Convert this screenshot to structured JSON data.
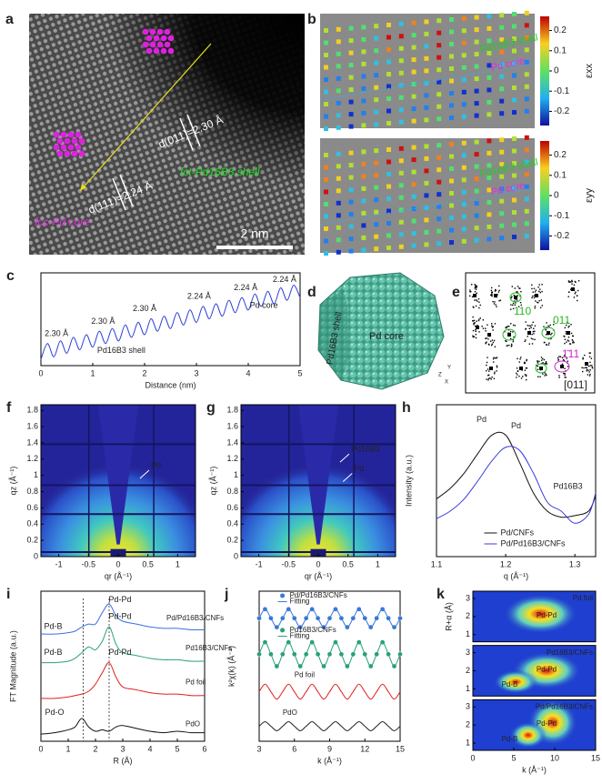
{
  "images": {
    "a": {
      "label": "a",
      "core": "fcc-Pd core",
      "shell": "fct-Pd16B3 shell",
      "scale_bar": "2 nm",
      "d111": "d(111)=2.24 Å",
      "d011": "d(011)=2.30 Å"
    },
    "b": {
      "label": "b",
      "panels": [
        {
          "strain": "εxx",
          "shell": "Pd16B3 shell",
          "core": "Pd core"
        },
        {
          "strain": "εyy",
          "shell": "Pd16B3 shell",
          "core": "Pd core"
        }
      ],
      "colorbar_ticks": [
        0.2,
        0.1,
        0,
        -0.1,
        -0.2
      ],
      "colorbar_lim": [
        -0.27,
        0.27
      ]
    },
    "d": {
      "label": "d",
      "core": "Pd core",
      "shell": "Pd16B3 shell",
      "axes": [
        "Z",
        "Y",
        "X"
      ]
    },
    "e": {
      "label": "e",
      "spots": [
        "110",
        "011",
        "1̄11"
      ],
      "zone": "[011]"
    }
  },
  "chart_data": [
    {
      "label": "c",
      "type": "line",
      "xlabel": "Distance (nm)",
      "xlim": [
        0,
        5
      ],
      "xticks": [
        0,
        1,
        2,
        3,
        4,
        5
      ],
      "ylim": [
        0,
        1.05
      ],
      "color": "#2b3fd6",
      "x": [
        0,
        0.125,
        0.25,
        0.375,
        0.5,
        0.625,
        0.75,
        0.875,
        1,
        1.125,
        1.25,
        1.375,
        1.5,
        1.625,
        1.75,
        1.875,
        2,
        2.125,
        2.25,
        2.375,
        2.5,
        2.625,
        2.75,
        2.875,
        3,
        3.125,
        3.25,
        3.375,
        3.5,
        3.625,
        3.75,
        3.875,
        4,
        4.125,
        4.25,
        4.375,
        4.5,
        4.625,
        4.75,
        4.875,
        5
      ],
      "values": [
        0.07,
        0.25,
        0.1,
        0.28,
        0.14,
        0.32,
        0.18,
        0.35,
        0.21,
        0.39,
        0.25,
        0.42,
        0.28,
        0.46,
        0.32,
        0.49,
        0.35,
        0.53,
        0.39,
        0.56,
        0.42,
        0.6,
        0.46,
        0.63,
        0.49,
        0.67,
        0.53,
        0.7,
        0.56,
        0.74,
        0.6,
        0.77,
        0.63,
        0.81,
        0.67,
        0.84,
        0.7,
        0.88,
        0.74,
        0.91,
        0.77
      ],
      "annotations": [
        "2.30 Å",
        "2.30 Å",
        "2.30 Å",
        "2.24 Å",
        "2.24 Å",
        "2.24 Å",
        "Pd16B3 shell",
        "Pd core"
      ]
    },
    {
      "label": "f",
      "type": "heatmap",
      "xlabel": "qr (Å⁻¹)",
      "ylabel": "qz (Å⁻¹)",
      "xlim": [
        -1.3,
        1.3
      ],
      "xticks": [
        -1,
        -0.5,
        0,
        0.5,
        1
      ],
      "ylim": [
        0,
        1.87
      ],
      "yticks": [
        0,
        0.2,
        0.4,
        0.6,
        0.8,
        1,
        1.2,
        1.4,
        1.6,
        1.8
      ],
      "annotations": [
        "Pd"
      ]
    },
    {
      "label": "g",
      "type": "heatmap",
      "xlabel": "qr (Å⁻¹)",
      "ylabel": "qz (Å⁻¹)",
      "xlim": [
        -1.3,
        1.3
      ],
      "xticks": [
        -1,
        -0.5,
        0,
        0.5,
        1
      ],
      "ylim": [
        0,
        1.87
      ],
      "yticks": [
        0,
        0.2,
        0.4,
        0.6,
        0.8,
        1,
        1.2,
        1.4,
        1.6,
        1.8
      ],
      "annotations": [
        "Pd16B3",
        "Pd"
      ]
    },
    {
      "label": "h",
      "type": "line",
      "xlabel": "q (Å⁻¹)",
      "ylabel": "Intensity (a.u.)",
      "xlim": [
        1.1,
        1.33
      ],
      "xticks": [
        1.1,
        1.2,
        1.3
      ],
      "ylim": [
        0,
        1
      ],
      "legend": "lower center",
      "x": [
        1.1,
        1.12,
        1.14,
        1.16,
        1.18,
        1.2,
        1.22,
        1.24,
        1.26,
        1.28,
        1.3,
        1.32,
        1.33
      ],
      "series": [
        {
          "name": "Pd/CNFs",
          "color": "#111111",
          "values": [
            0.38,
            0.45,
            0.55,
            0.68,
            0.8,
            0.8,
            0.62,
            0.42,
            0.3,
            0.26,
            0.27,
            0.3,
            0.4
          ]
        },
        {
          "name": "Pd/Pd16B3/CNFs",
          "color": "#3b3bdc",
          "values": [
            0.25,
            0.3,
            0.38,
            0.5,
            0.63,
            0.72,
            0.7,
            0.55,
            0.36,
            0.3,
            0.22,
            0.28,
            0.42
          ]
        }
      ],
      "annotations": [
        "Pd",
        "Pd",
        "Pd16B3"
      ]
    },
    {
      "label": "i",
      "type": "line",
      "xlabel": "R (Å)",
      "ylabel": "FT Magnitude (a.u.)",
      "xlim": [
        0,
        6
      ],
      "xticks": [
        0,
        1,
        2,
        3,
        4,
        5,
        6
      ],
      "ylim": [
        0,
        1.05
      ],
      "x": [
        0,
        0.5,
        1,
        1.25,
        1.5,
        1.75,
        2,
        2.25,
        2.5,
        2.75,
        3,
        3.5,
        4,
        4.5,
        5,
        5.5,
        6
      ],
      "series": [
        {
          "name": "Pd/Pd16B3/CNFs",
          "color": "#3b6fe0",
          "values": [
            0.75,
            0.75,
            0.76,
            0.77,
            0.8,
            0.82,
            0.82,
            0.9,
            0.96,
            0.88,
            0.84,
            0.82,
            0.8,
            0.79,
            0.79,
            0.78,
            0.78
          ]
        },
        {
          "name": "Pd16B3/CNFs",
          "color": "#2aa07a",
          "values": [
            0.55,
            0.55,
            0.56,
            0.58,
            0.62,
            0.66,
            0.64,
            0.7,
            0.8,
            0.68,
            0.62,
            0.6,
            0.58,
            0.57,
            0.57,
            0.56,
            0.56
          ]
        },
        {
          "name": "Pd foil",
          "color": "#e02020",
          "values": [
            0.3,
            0.3,
            0.31,
            0.32,
            0.33,
            0.35,
            0.4,
            0.48,
            0.55,
            0.45,
            0.38,
            0.36,
            0.34,
            0.33,
            0.33,
            0.32,
            0.32
          ]
        },
        {
          "name": "PdO",
          "color": "#111111",
          "values": [
            0.05,
            0.06,
            0.08,
            0.1,
            0.16,
            0.1,
            0.07,
            0.08,
            0.07,
            0.1,
            0.11,
            0.09,
            0.07,
            0.06,
            0.07,
            0.06,
            0.06
          ]
        }
      ],
      "vlines": [
        1.55,
        2.5
      ],
      "annotations": [
        "Pd-Pd",
        "Pd-Pd",
        "Pd-Pd",
        "Pd-B",
        "Pd-B",
        "Pd-O"
      ]
    },
    {
      "label": "j",
      "type": "line",
      "xlabel": "k (Å⁻¹)",
      "ylabel": "k²χ(k) (Å⁻²)",
      "xlim": [
        3,
        15
      ],
      "xticks": [
        3,
        6,
        9,
        12,
        15
      ],
      "ylim": [
        0,
        1
      ],
      "x": [
        3,
        3.5,
        4,
        4.5,
        5,
        5.5,
        6,
        6.5,
        7,
        7.5,
        8,
        8.5,
        9,
        9.5,
        10,
        10.5,
        11,
        11.5,
        12,
        12.5,
        13,
        13.5,
        14,
        14.5,
        15
      ],
      "series": [
        {
          "name": "Pd/Pd16B3/CNFs",
          "color": "#3a78d8",
          "marker": "circle",
          "values": [
            0.82,
            0.88,
            0.82,
            0.76,
            0.82,
            0.88,
            0.82,
            0.76,
            0.82,
            0.88,
            0.82,
            0.76,
            0.82,
            0.88,
            0.82,
            0.76,
            0.82,
            0.88,
            0.82,
            0.76,
            0.82,
            0.88,
            0.82,
            0.76,
            0.82
          ]
        },
        {
          "name": "Fitting",
          "color": "#3a78d8",
          "values": [
            0.82,
            0.88,
            0.82,
            0.76,
            0.82,
            0.88,
            0.82,
            0.76,
            0.82,
            0.88,
            0.82,
            0.76,
            0.82,
            0.88,
            0.82,
            0.76,
            0.82,
            0.88,
            0.82,
            0.76,
            0.82,
            0.88,
            0.82,
            0.76,
            0.82
          ]
        },
        {
          "name": "Pd16B3/CNFs",
          "color": "#2aa07a",
          "marker": "circle",
          "values": [
            0.58,
            0.66,
            0.58,
            0.5,
            0.58,
            0.66,
            0.58,
            0.5,
            0.58,
            0.66,
            0.58,
            0.5,
            0.58,
            0.66,
            0.58,
            0.5,
            0.58,
            0.66,
            0.58,
            0.5,
            0.58,
            0.66,
            0.58,
            0.5,
            0.58
          ]
        },
        {
          "name": "Fitting",
          "color": "#2aa07a",
          "values": [
            0.58,
            0.66,
            0.58,
            0.5,
            0.58,
            0.66,
            0.58,
            0.5,
            0.58,
            0.66,
            0.58,
            0.5,
            0.58,
            0.66,
            0.58,
            0.5,
            0.58,
            0.66,
            0.58,
            0.5,
            0.58,
            0.66,
            0.58,
            0.5,
            0.58
          ]
        },
        {
          "name": "Pd foil",
          "color": "#e02020",
          "values": [
            0.33,
            0.38,
            0.33,
            0.28,
            0.33,
            0.38,
            0.33,
            0.28,
            0.33,
            0.38,
            0.33,
            0.28,
            0.33,
            0.38,
            0.33,
            0.28,
            0.33,
            0.38,
            0.33,
            0.28,
            0.33,
            0.38,
            0.33,
            0.28,
            0.33
          ]
        },
        {
          "name": "PdO",
          "color": "#222222",
          "values": [
            0.1,
            0.13,
            0.1,
            0.07,
            0.1,
            0.13,
            0.1,
            0.07,
            0.1,
            0.13,
            0.1,
            0.07,
            0.1,
            0.13,
            0.1,
            0.07,
            0.1,
            0.13,
            0.1,
            0.07,
            0.1,
            0.13,
            0.1,
            0.07,
            0.1
          ]
        }
      ]
    },
    {
      "label": "k",
      "type": "heatmap",
      "xlabel": "k (Å⁻¹)",
      "ylabel": "R+α (Å)",
      "xlim": [
        0,
        15
      ],
      "xticks": [
        0,
        5,
        10,
        15
      ],
      "ylim": [
        0.6,
        3.4
      ],
      "yticks": [
        1,
        2,
        3
      ],
      "panels": [
        {
          "title": "Pd foil",
          "labels": [
            "Pd-Pd"
          ]
        },
        {
          "title": "Pd16B3/CNFs",
          "labels": [
            "Pd-Pd",
            "Pd-B"
          ]
        },
        {
          "title": "Pd/Pd16B3/CNFs",
          "labels": [
            "Pd-Pd",
            "Pd-B"
          ]
        }
      ]
    }
  ]
}
